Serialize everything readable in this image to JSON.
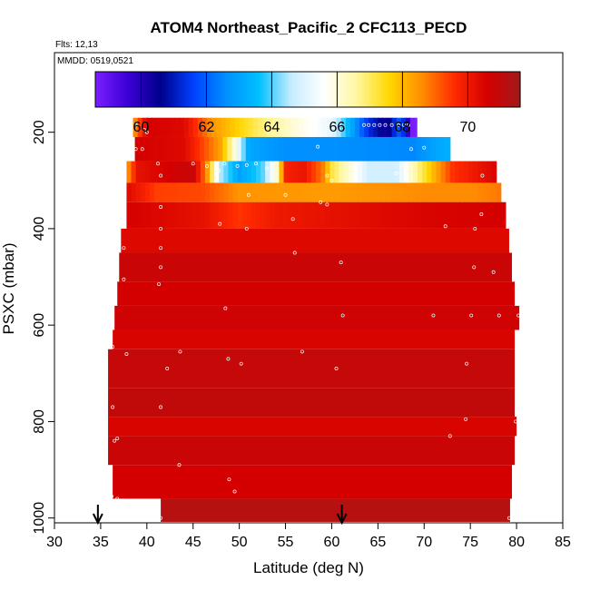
{
  "chart_data": {
    "type": "heatmap",
    "title": "ATOM4 Northeast_Pacific_2 CFC113_PECD",
    "flights_text": "Flts: 12,13",
    "dates_text": "MMDD: 0519,0521",
    "xlabel": "Latitude (deg N)",
    "ylabel": "PSXC (mbar)",
    "xlim": [
      30,
      85
    ],
    "ylim": [
      1010,
      35
    ],
    "x_ticks": [
      "30",
      "35",
      "40",
      "45",
      "50",
      "55",
      "60",
      "65",
      "70",
      "75",
      "80",
      "85"
    ],
    "y_ticks": [
      "200",
      "400",
      "600",
      "800",
      "1000"
    ],
    "colorbar": {
      "range": [
        58.6,
        71.6
      ],
      "ticks": [
        "60",
        "62",
        "64",
        "66",
        "68",
        "70"
      ],
      "colors": [
        "#7a1fff",
        "#3b00d6",
        "#00008c",
        "#0040ff",
        "#0090ff",
        "#00bfff",
        "#c7ecff",
        "#ffffff",
        "#fff7a0",
        "#ffd700",
        "#ff8c00",
        "#ff2a00",
        "#d40000",
        "#a31a1a"
      ]
    },
    "profile_markers_lat": [
      34.7,
      61.1
    ],
    "layers": [
      {
        "p_top": 170,
        "p_bot": 210,
        "lat_min": 38.5,
        "lat_max": 69.2,
        "stops": [
          [
            38.5,
            68.3
          ],
          [
            40,
            70.6
          ],
          [
            44,
            70.4
          ],
          [
            47,
            68.5
          ],
          [
            52,
            67.0
          ],
          [
            56,
            66.0
          ],
          [
            60,
            65.2
          ],
          [
            64,
            61.3
          ],
          [
            66,
            60.3
          ],
          [
            67.5,
            62.2
          ],
          [
            68.6,
            58.7
          ],
          [
            69.2,
            58.5
          ]
        ]
      },
      {
        "p_top": 210,
        "p_bot": 260,
        "lat_min": 38.7,
        "lat_max": 72.8,
        "stops": [
          [
            38.7,
            70.6
          ],
          [
            44,
            70.4
          ],
          [
            48,
            68.3
          ],
          [
            49.5,
            66.0
          ],
          [
            51,
            63.1
          ],
          [
            55,
            62.6
          ],
          [
            60,
            62.6
          ],
          [
            69,
            62.5
          ],
          [
            71,
            63.0
          ],
          [
            72.8,
            63.3
          ]
        ]
      },
      {
        "p_top": 260,
        "p_bot": 305,
        "lat_min": 37.8,
        "lat_max": 77.8,
        "stops": [
          [
            37.8,
            68.3
          ],
          [
            39,
            70.2
          ],
          [
            45,
            70.9
          ],
          [
            46.5,
            68.5
          ],
          [
            48,
            64.5
          ],
          [
            50,
            63.0
          ],
          [
            52.5,
            64.0
          ],
          [
            54,
            66.0
          ],
          [
            55,
            69.8
          ],
          [
            57,
            70.1
          ],
          [
            59,
            68.8
          ],
          [
            60,
            67.2
          ],
          [
            64,
            64.8
          ],
          [
            67,
            64.8
          ],
          [
            69,
            66.5
          ],
          [
            73,
            69.5
          ],
          [
            77.8,
            70.5
          ]
        ]
      },
      {
        "p_top": 305,
        "p_bot": 345,
        "lat_min": 37.8,
        "lat_max": 78.3,
        "stops": [
          [
            37.8,
            70.4
          ],
          [
            41,
            69.4
          ],
          [
            46,
            69.3
          ],
          [
            50,
            68.5
          ],
          [
            60,
            68.4
          ],
          [
            70,
            68.6
          ],
          [
            75,
            68.6
          ],
          [
            78.3,
            68.8
          ]
        ]
      },
      {
        "p_top": 345,
        "p_bot": 400,
        "lat_min": 37.8,
        "lat_max": 78.8,
        "stops": [
          [
            37.8,
            70.6
          ],
          [
            46,
            70.2
          ],
          [
            50,
            69.5
          ],
          [
            54,
            70.0
          ],
          [
            60,
            70.2
          ],
          [
            70,
            70.5
          ],
          [
            78.8,
            70.6
          ]
        ]
      },
      {
        "p_top": 400,
        "p_bot": 450,
        "lat_min": 37.2,
        "lat_max": 79.2,
        "value": 70.4
      },
      {
        "p_top": 450,
        "p_bot": 510,
        "lat_min": 37.0,
        "lat_max": 79.5,
        "value": 70.8
      },
      {
        "p_top": 510,
        "p_bot": 560,
        "lat_min": 36.8,
        "lat_max": 79.8,
        "value": 70.6
      },
      {
        "p_top": 560,
        "p_bot": 610,
        "lat_min": 36.5,
        "lat_max": 80.3,
        "value": 70.7
      },
      {
        "p_top": 610,
        "p_bot": 650,
        "lat_min": 36.3,
        "lat_max": 79.8,
        "value": 70.5
      },
      {
        "p_top": 650,
        "p_bot": 730,
        "lat_min": 35.8,
        "lat_max": 79.8,
        "value": 70.9
      },
      {
        "p_top": 730,
        "p_bot": 790,
        "lat_min": 35.8,
        "lat_max": 79.8,
        "value": 71.0
      },
      {
        "p_top": 790,
        "p_bot": 830,
        "lat_min": 35.8,
        "lat_max": 80.0,
        "value": 70.5
      },
      {
        "p_top": 830,
        "p_bot": 890,
        "lat_min": 35.8,
        "lat_max": 79.8,
        "value": 70.8
      },
      {
        "p_top": 890,
        "p_bot": 960,
        "lat_min": 36.3,
        "lat_max": 79.5,
        "value": 70.6
      },
      {
        "p_top": 960,
        "p_bot": 1008,
        "lat_min": 41.5,
        "lat_max": 79.3,
        "value": 71.2
      }
    ],
    "sample_points": [
      [
        38.8,
        185
      ],
      [
        39.7,
        195
      ],
      [
        40.0,
        200
      ],
      [
        63.5,
        185
      ],
      [
        64.0,
        185
      ],
      [
        64.6,
        185
      ],
      [
        65.2,
        185
      ],
      [
        65.8,
        185
      ],
      [
        66.5,
        185
      ],
      [
        67.2,
        185
      ],
      [
        67.8,
        185
      ],
      [
        68.3,
        185
      ],
      [
        38.8,
        235
      ],
      [
        39.5,
        235
      ],
      [
        58.5,
        230
      ],
      [
        68.6,
        235
      ],
      [
        70.0,
        232
      ],
      [
        41.2,
        265
      ],
      [
        41.5,
        290
      ],
      [
        45.0,
        265
      ],
      [
        46.5,
        270
      ],
      [
        47.8,
        280
      ],
      [
        48.4,
        265
      ],
      [
        49.8,
        270
      ],
      [
        50.8,
        268
      ],
      [
        51.8,
        265
      ],
      [
        53.0,
        275
      ],
      [
        59.5,
        290
      ],
      [
        60.0,
        300
      ],
      [
        67.0,
        285
      ],
      [
        76.3,
        290
      ],
      [
        51.0,
        330
      ],
      [
        55.0,
        330
      ],
      [
        58.8,
        345
      ],
      [
        59.5,
        350
      ],
      [
        41.5,
        355
      ],
      [
        76.2,
        370
      ],
      [
        47.9,
        390
      ],
      [
        50.8,
        400
      ],
      [
        55.8,
        380
      ],
      [
        72.3,
        395
      ],
      [
        75.5,
        400
      ],
      [
        41.5,
        400
      ],
      [
        41.5,
        440
      ],
      [
        37.5,
        440
      ],
      [
        56.0,
        450
      ],
      [
        41.5,
        480
      ],
      [
        61.0,
        470
      ],
      [
        37.5,
        505
      ],
      [
        41.3,
        515
      ],
      [
        75.4,
        480
      ],
      [
        77.5,
        490
      ],
      [
        48.5,
        565
      ],
      [
        61.2,
        580
      ],
      [
        71.0,
        580
      ],
      [
        75.1,
        580
      ],
      [
        78.1,
        580
      ],
      [
        80.2,
        580
      ],
      [
        36.3,
        645
      ],
      [
        37.8,
        660
      ],
      [
        43.6,
        655
      ],
      [
        42.2,
        690
      ],
      [
        48.8,
        670
      ],
      [
        50.2,
        680
      ],
      [
        56.8,
        655
      ],
      [
        60.5,
        690
      ],
      [
        74.6,
        680
      ],
      [
        36.3,
        770
      ],
      [
        41.5,
        770
      ],
      [
        74.5,
        795
      ],
      [
        72.8,
        830
      ],
      [
        79.9,
        800
      ],
      [
        36.8,
        835
      ],
      [
        36.5,
        840
      ],
      [
        43.5,
        890
      ],
      [
        48.9,
        920
      ],
      [
        49.5,
        945
      ],
      [
        36.2,
        955
      ],
      [
        36.8,
        960
      ],
      [
        41.5,
        1000
      ],
      [
        79.2,
        1000
      ]
    ]
  }
}
